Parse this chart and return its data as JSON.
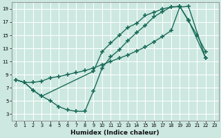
{
  "xlabel": "Humidex (Indice chaleur)",
  "xlim": [
    -0.5,
    23.5
  ],
  "ylim": [
    2,
    20
  ],
  "yticks": [
    3,
    5,
    7,
    9,
    11,
    13,
    15,
    17,
    19
  ],
  "xticks": [
    0,
    1,
    2,
    3,
    4,
    5,
    6,
    7,
    8,
    9,
    10,
    11,
    12,
    13,
    14,
    15,
    16,
    17,
    18,
    19,
    20,
    21,
    22,
    23
  ],
  "bg_color": "#cce8e0",
  "grid_color": "#aacccc",
  "line_color": "#1a6b5a",
  "curve1_x": [
    0,
    1,
    2,
    3,
    4,
    5,
    6,
    7,
    8,
    9,
    10,
    11,
    12,
    13,
    14,
    15,
    16,
    17,
    18,
    19,
    20,
    21,
    22
  ],
  "curve1_y": [
    8.2,
    7.8,
    6.6,
    5.7,
    5.0,
    4.1,
    3.6,
    3.4,
    3.4,
    6.5,
    10.0,
    11.7,
    12.8,
    14.2,
    15.4,
    16.5,
    17.8,
    18.6,
    19.3,
    19.4,
    17.2,
    15.0,
    12.5
  ],
  "curve2_x": [
    0,
    1,
    2,
    3,
    4,
    5,
    6,
    7,
    8,
    9,
    10,
    11,
    12,
    13,
    14,
    15,
    16,
    17,
    18,
    19,
    20,
    22
  ],
  "curve2_y": [
    8.2,
    7.8,
    7.8,
    8.0,
    8.5,
    8.7,
    9.0,
    9.3,
    9.6,
    10.0,
    10.5,
    11.0,
    11.5,
    12.0,
    12.6,
    13.2,
    14.0,
    14.8,
    15.7,
    19.3,
    19.4,
    11.5
  ],
  "curve3_x": [
    0,
    1,
    2,
    3,
    9,
    10,
    11,
    12,
    13,
    14,
    15,
    16,
    17,
    18,
    19,
    20,
    22
  ],
  "curve3_y": [
    8.2,
    7.8,
    6.6,
    5.7,
    9.5,
    12.5,
    13.8,
    15.0,
    16.2,
    16.8,
    18.0,
    18.5,
    19.0,
    19.3,
    19.4,
    17.3,
    11.5
  ]
}
